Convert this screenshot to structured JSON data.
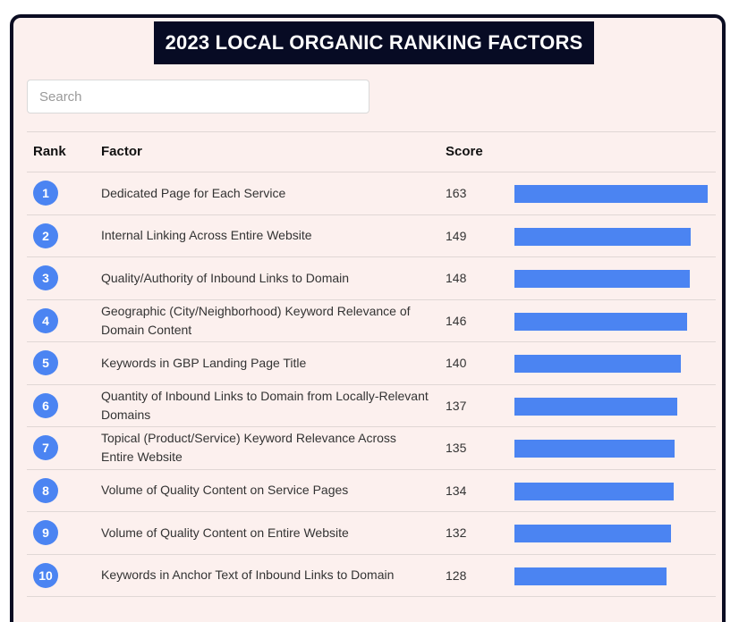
{
  "title": "2023 LOCAL ORGANIC RANKING FACTORS",
  "search": {
    "placeholder": "Search"
  },
  "table": {
    "headers": {
      "rank": "Rank",
      "factor": "Factor",
      "score": "Score"
    },
    "max_score": 163,
    "bar_color": "#4b84f2",
    "rows": [
      {
        "rank": "1",
        "factor": "Dedicated Page for Each Service",
        "score": "163"
      },
      {
        "rank": "2",
        "factor": "Internal Linking Across Entire Website",
        "score": "149"
      },
      {
        "rank": "3",
        "factor": "Quality/Authority of Inbound Links to Domain",
        "score": "148"
      },
      {
        "rank": "4",
        "factor": "Geographic (City/Neighborhood) Keyword Relevance of Domain Content",
        "score": "146"
      },
      {
        "rank": "5",
        "factor": "Keywords in GBP Landing Page Title",
        "score": "140"
      },
      {
        "rank": "6",
        "factor": "Quantity of Inbound Links to Domain from Locally-Relevant Domains",
        "score": "137"
      },
      {
        "rank": "7",
        "factor": "Topical (Product/Service) Keyword Relevance Across Entire Website",
        "score": "135"
      },
      {
        "rank": "8",
        "factor": "Volume of Quality Content on Service Pages",
        "score": "134"
      },
      {
        "rank": "9",
        "factor": "Volume of Quality Content on Entire Website",
        "score": "132"
      },
      {
        "rank": "10",
        "factor": "Keywords in Anchor Text of Inbound Links to Domain",
        "score": "128"
      }
    ]
  }
}
